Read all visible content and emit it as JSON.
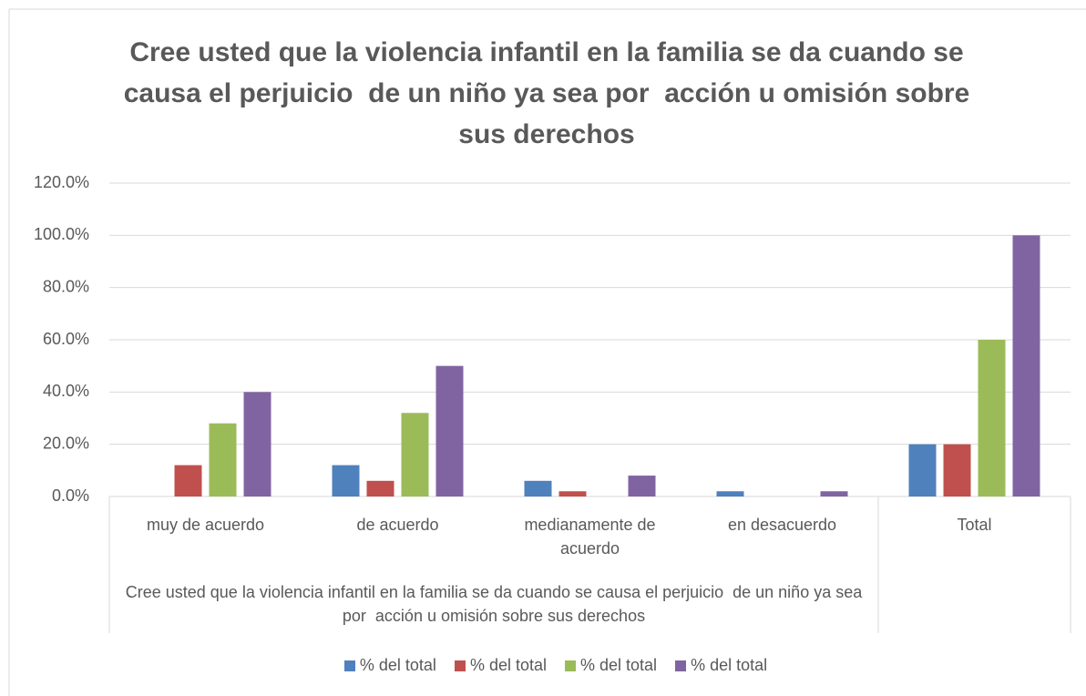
{
  "chart_data": {
    "type": "bar",
    "title": "Cree usted que la violencia infantil en la familia se da cuando se causa el perjuicio  de un niño ya sea por  acción u omisión sobre sus derechos",
    "categories": [
      "muy de acuerdo",
      "de acuerdo",
      "medianamente de acuerdo",
      "en desacuerdo",
      "Total"
    ],
    "category_group": "Cree usted que la violencia infantil en la familia se da cuando se causa el perjuicio  de un niño ya sea por  acción u omisión sobre sus derechos",
    "series": [
      {
        "name": "% del total",
        "color": "#4f81bd",
        "values": [
          0,
          12,
          6,
          2,
          20
        ]
      },
      {
        "name": "% del total",
        "color": "#c0504d",
        "values": [
          12,
          6,
          2,
          0,
          20
        ]
      },
      {
        "name": "% del total",
        "color": "#9bbb59",
        "values": [
          28,
          32,
          0,
          0,
          60
        ]
      },
      {
        "name": "% del total",
        "color": "#8064a2",
        "values": [
          40,
          50,
          8,
          2,
          100
        ]
      }
    ],
    "ylim": [
      0,
      120
    ],
    "yticks": [
      {
        "value": 0,
        "label": "0.0%"
      },
      {
        "value": 20,
        "label": "20.0%"
      },
      {
        "value": 40,
        "label": "40.0%"
      },
      {
        "value": 60,
        "label": "60.0%"
      },
      {
        "value": 80,
        "label": "80.0%"
      },
      {
        "value": 100,
        "label": "100.0%"
      },
      {
        "value": 120,
        "label": "120.0%"
      }
    ],
    "grid": true,
    "legend": "bottom"
  }
}
